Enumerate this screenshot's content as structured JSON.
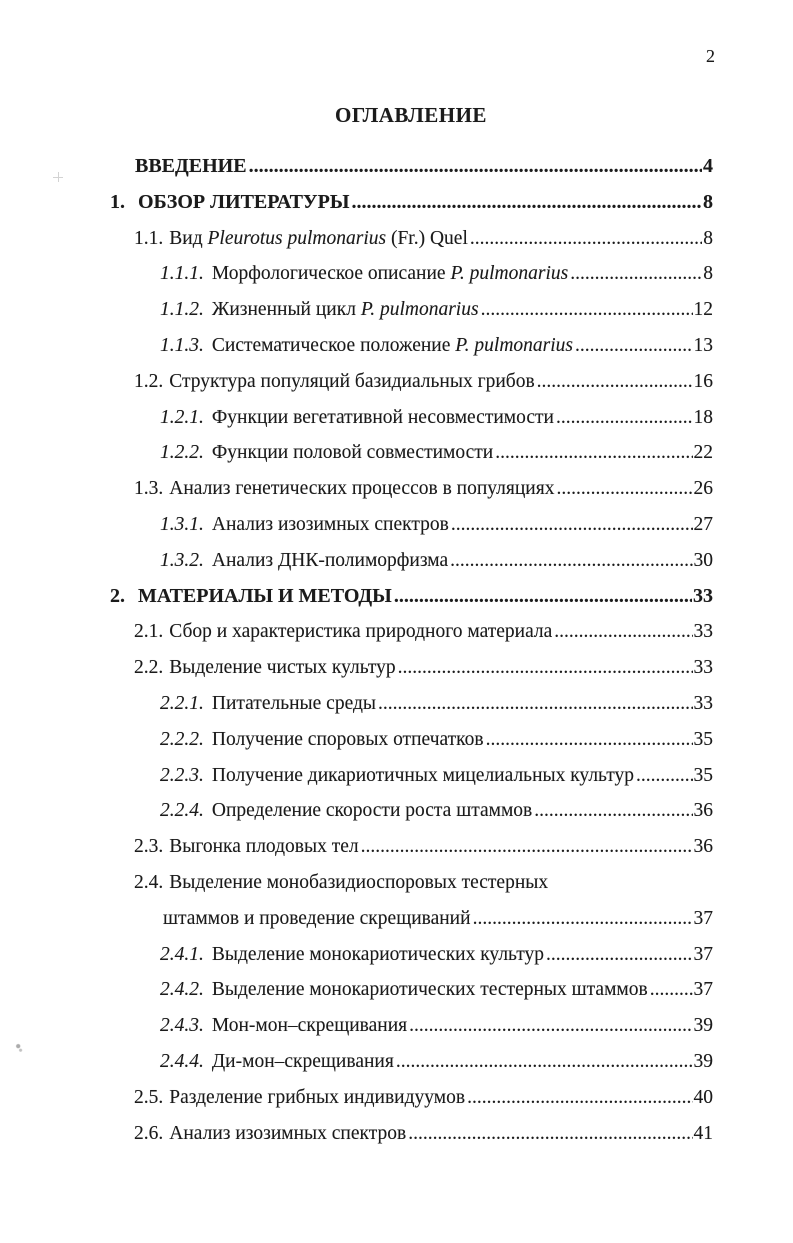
{
  "page_number": "2",
  "title": "ОГЛАВЛЕНИЕ",
  "toc": {
    "entries": [
      {
        "level": 0,
        "bold": true,
        "num": "",
        "segments": [
          {
            "t": "ВВЕДЕНИЕ"
          }
        ],
        "page": "4"
      },
      {
        "level": 1,
        "bold": true,
        "num": "1.",
        "segments": [
          {
            "t": "ОБЗОР ЛИТЕРАТУРЫ"
          }
        ],
        "page": "8"
      },
      {
        "level": 2,
        "num": "1.1.",
        "segments": [
          {
            "t": "Вид "
          },
          {
            "t": "Pleurotus pulmonarius",
            "italic": true
          },
          {
            "t": " (Fr.) Quel"
          }
        ],
        "page": "8"
      },
      {
        "level": 3,
        "num": "1.1.1.",
        "italic_num": true,
        "segments": [
          {
            "t": "Морфологическое описание "
          },
          {
            "t": "P. pulmonarius",
            "italic": true
          },
          {
            "t": " "
          }
        ],
        "page": "8"
      },
      {
        "level": 3,
        "num": "1.1.2.",
        "italic_num": true,
        "segments": [
          {
            "t": "Жизненный цикл "
          },
          {
            "t": "P. pulmonarius",
            "italic": true
          }
        ],
        "page": "12"
      },
      {
        "level": 3,
        "num": "1.1.3.",
        "italic_num": true,
        "segments": [
          {
            "t": "Систематическое положение "
          },
          {
            "t": "P. pulmonarius",
            "italic": true
          }
        ],
        "page": "13"
      },
      {
        "level": 2,
        "num": "1.2.",
        "segments": [
          {
            "t": "Структура популяций базидиальных грибов"
          }
        ],
        "page": "16"
      },
      {
        "level": 3,
        "num": "1.2.1.",
        "italic_num": true,
        "segments": [
          {
            "t": "Функции вегетативной несовместимости"
          }
        ],
        "page": "18"
      },
      {
        "level": 3,
        "num": "1.2.2.",
        "italic_num": true,
        "segments": [
          {
            "t": "Функции половой совместимости"
          }
        ],
        "page": "22"
      },
      {
        "level": 2,
        "num": "1.3.",
        "segments": [
          {
            "t": "Анализ генетических процессов в популяциях"
          }
        ],
        "page": "26"
      },
      {
        "level": 3,
        "num": "1.3.1.",
        "italic_num": true,
        "segments": [
          {
            "t": "Анализ изозимных спектров"
          }
        ],
        "page": "27"
      },
      {
        "level": 3,
        "num": "1.3.2.",
        "italic_num": true,
        "segments": [
          {
            "t": "Анализ ДНК-полиморфизма"
          }
        ],
        "page": "30"
      },
      {
        "level": 1,
        "bold": true,
        "num": "2.",
        "segments": [
          {
            "t": "МАТЕРИАЛЫ И МЕТОДЫ "
          }
        ],
        "page": "33"
      },
      {
        "level": 2,
        "num": "2.1.",
        "segments": [
          {
            "t": "Сбор и характеристика природного материала"
          }
        ],
        "page": "33"
      },
      {
        "level": 2,
        "num": "2.2.",
        "segments": [
          {
            "t": "Выделение чистых культур"
          }
        ],
        "page": "33"
      },
      {
        "level": 3,
        "num": "2.2.1.",
        "italic_num": true,
        "segments": [
          {
            "t": "Питательные среды"
          }
        ],
        "page": "33"
      },
      {
        "level": 3,
        "num": "2.2.2.",
        "italic_num": true,
        "segments": [
          {
            "t": "Получение споровых отпечатков"
          }
        ],
        "page": "35"
      },
      {
        "level": 3,
        "num": "2.2.3.",
        "italic_num": true,
        "segments": [
          {
            "t": "Получение дикариотичных мицелиальных культур"
          }
        ],
        "page": "35"
      },
      {
        "level": 3,
        "num": "2.2.4.",
        "italic_num": true,
        "segments": [
          {
            "t": "Определение скорости роста штаммов"
          }
        ],
        "page": "36"
      },
      {
        "level": 2,
        "num": "2.3.",
        "segments": [
          {
            "t": "Выгонка плодовых тел"
          }
        ],
        "page": "36"
      },
      {
        "level": 2,
        "num": "2.4.",
        "segments": [
          {
            "t": "Выделение монобазидиоспоровых тестерных"
          }
        ],
        "page": "",
        "no_leader": true
      },
      {
        "level": 4,
        "num": "",
        "segments": [
          {
            "t": "штаммов и проведение скрещиваний"
          }
        ],
        "page": "37"
      },
      {
        "level": 3,
        "num": "2.4.1.",
        "italic_num": true,
        "segments": [
          {
            "t": "Выделение монокариотических культур"
          }
        ],
        "page": "37"
      },
      {
        "level": 3,
        "num": "2.4.2.",
        "italic_num": true,
        "segments": [
          {
            "t": "Выделение монокариотических тестерных штаммов"
          }
        ],
        "page": "37"
      },
      {
        "level": 3,
        "num": "2.4.3.",
        "italic_num": true,
        "segments": [
          {
            "t": "Мон-мон–скрещивания"
          }
        ],
        "page": "39"
      },
      {
        "level": 3,
        "num": "2.4.4.",
        "italic_num": true,
        "segments": [
          {
            "t": "Ди-мон–скрещивания"
          }
        ],
        "page": "39"
      },
      {
        "level": 2,
        "num": "2.5.",
        "segments": [
          {
            "t": "Разделение грибных индивидуумов"
          }
        ],
        "page": "40"
      },
      {
        "level": 2,
        "num": "2.6.",
        "segments": [
          {
            "t": "Анализ изозимных спектров"
          }
        ],
        "page": "41"
      }
    ]
  }
}
